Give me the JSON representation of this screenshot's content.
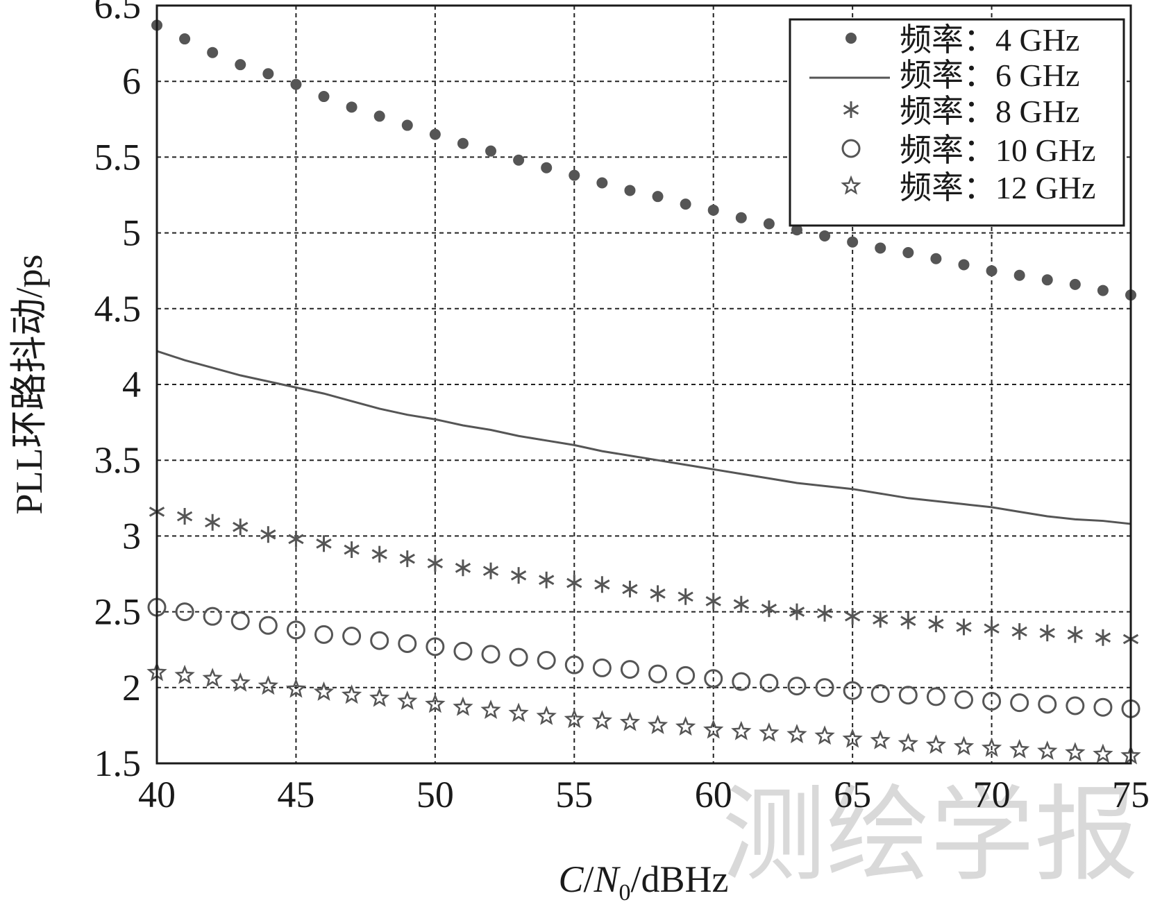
{
  "chart_data": {
    "type": "scatter",
    "title": "",
    "xlabel_parts": {
      "c": "C",
      "slash1": "/",
      "n": "N",
      "sub": "0",
      "rest": "/dBHz"
    },
    "ylabel": "PLL环路抖动/ps",
    "xlim": [
      40,
      75
    ],
    "ylim": [
      1.5,
      6.5
    ],
    "x_ticks": [
      "40",
      "45",
      "50",
      "55",
      "60",
      "65",
      "70",
      "75"
    ],
    "y_ticks": [
      "1.5",
      "2",
      "2.5",
      "3",
      "3.5",
      "4",
      "4.5",
      "5",
      "5.5",
      "6",
      "6.5"
    ],
    "grid": true,
    "legend_position": "top-right",
    "watermark": "测绘学报",
    "x": [
      40,
      41,
      42,
      43,
      44,
      45,
      46,
      47,
      48,
      49,
      50,
      51,
      52,
      53,
      54,
      55,
      56,
      57,
      58,
      59,
      60,
      61,
      62,
      63,
      64,
      65,
      66,
      67,
      68,
      69,
      70,
      71,
      72,
      73,
      74,
      75
    ],
    "series": [
      {
        "name": "频率：4 GHz",
        "marker": "dot",
        "values": [
          6.37,
          6.28,
          6.19,
          6.11,
          6.05,
          5.98,
          5.9,
          5.83,
          5.77,
          5.71,
          5.65,
          5.59,
          5.54,
          5.48,
          5.43,
          5.38,
          5.33,
          5.28,
          5.24,
          5.19,
          5.15,
          5.1,
          5.06,
          5.02,
          4.98,
          4.94,
          4.9,
          4.87,
          4.83,
          4.79,
          4.75,
          4.72,
          4.69,
          4.66,
          4.62,
          4.59
        ]
      },
      {
        "name": "频率：6 GHz",
        "marker": "line",
        "values": [
          4.22,
          4.16,
          4.11,
          4.06,
          4.02,
          3.98,
          3.94,
          3.89,
          3.84,
          3.8,
          3.77,
          3.73,
          3.7,
          3.66,
          3.63,
          3.6,
          3.56,
          3.53,
          3.5,
          3.47,
          3.44,
          3.41,
          3.38,
          3.35,
          3.33,
          3.31,
          3.28,
          3.25,
          3.23,
          3.21,
          3.19,
          3.16,
          3.13,
          3.11,
          3.1,
          3.08
        ]
      },
      {
        "name": "频率：8 GHz",
        "marker": "asterisk",
        "values": [
          3.16,
          3.13,
          3.09,
          3.06,
          3.01,
          2.98,
          2.95,
          2.91,
          2.88,
          2.85,
          2.82,
          2.79,
          2.77,
          2.74,
          2.71,
          2.69,
          2.68,
          2.65,
          2.62,
          2.6,
          2.57,
          2.55,
          2.52,
          2.5,
          2.49,
          2.47,
          2.45,
          2.44,
          2.42,
          2.4,
          2.39,
          2.37,
          2.36,
          2.35,
          2.33,
          2.32
        ]
      },
      {
        "name": "频率：10 GHz",
        "marker": "circle",
        "values": [
          2.53,
          2.5,
          2.47,
          2.44,
          2.41,
          2.38,
          2.35,
          2.34,
          2.31,
          2.29,
          2.27,
          2.24,
          2.22,
          2.2,
          2.18,
          2.15,
          2.13,
          2.12,
          2.09,
          2.08,
          2.06,
          2.04,
          2.03,
          2.01,
          2.0,
          1.98,
          1.96,
          1.95,
          1.94,
          1.92,
          1.91,
          1.9,
          1.89,
          1.88,
          1.87,
          1.86
        ]
      },
      {
        "name": "频率：12 GHz",
        "marker": "star",
        "values": [
          2.1,
          2.08,
          2.06,
          2.03,
          2.01,
          1.99,
          1.97,
          1.95,
          1.93,
          1.91,
          1.89,
          1.87,
          1.85,
          1.83,
          1.81,
          1.79,
          1.78,
          1.77,
          1.75,
          1.74,
          1.72,
          1.71,
          1.7,
          1.69,
          1.68,
          1.66,
          1.65,
          1.63,
          1.62,
          1.61,
          1.6,
          1.59,
          1.58,
          1.57,
          1.56,
          1.55
        ]
      }
    ]
  }
}
